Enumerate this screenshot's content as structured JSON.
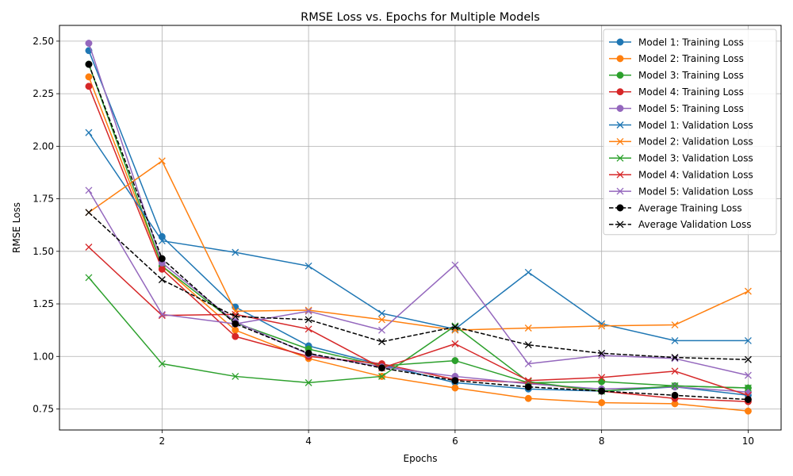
{
  "chart_data": {
    "type": "line",
    "title": "RMSE Loss vs. Epochs for Multiple Models",
    "xlabel": "Epochs",
    "ylabel": "RMSE Loss",
    "xlim": [
      0.6,
      10.45
    ],
    "ylim": [
      0.65,
      2.575
    ],
    "xticks": [
      2,
      4,
      6,
      8,
      10
    ],
    "xtick_labels": [
      "2",
      "4",
      "6",
      "8",
      "10"
    ],
    "yticks": [
      0.75,
      1.0,
      1.25,
      1.5,
      1.75,
      2.0,
      2.25,
      2.5
    ],
    "ytick_labels": [
      "0.75",
      "1.00",
      "1.25",
      "1.50",
      "1.75",
      "2.00",
      "2.25",
      "2.50"
    ],
    "grid": true,
    "legend_position": "top-right",
    "x": [
      1,
      2,
      3,
      4,
      5,
      6,
      7,
      8,
      9,
      10
    ],
    "series": [
      {
        "name": "Model 1: Training Loss",
        "color": "#1f77b4",
        "marker": "circle",
        "dashed": false,
        "values": [
          2.455,
          1.57,
          1.235,
          1.05,
          0.96,
          0.875,
          0.845,
          0.835,
          0.855,
          0.815
        ]
      },
      {
        "name": "Model 2: Training Loss",
        "color": "#ff7f0e",
        "marker": "circle",
        "dashed": false,
        "values": [
          2.33,
          1.43,
          1.125,
          0.99,
          0.905,
          0.85,
          0.8,
          0.78,
          0.775,
          0.74
        ]
      },
      {
        "name": "Model 3: Training Loss",
        "color": "#2ca02c",
        "marker": "circle",
        "dashed": false,
        "values": [
          2.39,
          1.43,
          1.16,
          1.035,
          0.955,
          0.98,
          0.875,
          0.88,
          0.86,
          0.85
        ]
      },
      {
        "name": "Model 4: Training Loss",
        "color": "#d62728",
        "marker": "circle",
        "dashed": false,
        "values": [
          2.285,
          1.415,
          1.095,
          1.0,
          0.965,
          0.89,
          0.875,
          0.835,
          0.8,
          0.785
        ]
      },
      {
        "name": "Model 5: Training Loss",
        "color": "#9467bd",
        "marker": "circle",
        "dashed": false,
        "values": [
          2.49,
          1.445,
          1.165,
          1.01,
          0.95,
          0.905,
          0.87,
          0.845,
          0.855,
          0.83
        ]
      },
      {
        "name": "Model 1: Validation Loss",
        "color": "#1f77b4",
        "marker": "x",
        "dashed": false,
        "values": [
          2.065,
          1.55,
          1.495,
          1.43,
          1.205,
          1.13,
          1.4,
          1.155,
          1.075,
          1.075
        ]
      },
      {
        "name": "Model 2: Validation Loss",
        "color": "#ff7f0e",
        "marker": "x",
        "dashed": false,
        "values": [
          1.685,
          1.93,
          1.215,
          1.22,
          1.175,
          1.125,
          1.135,
          1.145,
          1.15,
          1.31
        ]
      },
      {
        "name": "Model 3: Validation Loss",
        "color": "#2ca02c",
        "marker": "x",
        "dashed": false,
        "values": [
          1.375,
          0.965,
          0.905,
          0.875,
          0.905,
          1.145,
          0.88,
          0.835,
          0.86,
          0.85
        ]
      },
      {
        "name": "Model 4: Validation Loss",
        "color": "#d62728",
        "marker": "x",
        "dashed": false,
        "values": [
          1.52,
          1.195,
          1.2,
          1.13,
          0.945,
          1.06,
          0.885,
          0.9,
          0.93,
          0.815
        ]
      },
      {
        "name": "Model 5: Validation Loss",
        "color": "#9467bd",
        "marker": "x",
        "dashed": false,
        "values": [
          1.79,
          1.2,
          1.155,
          1.215,
          1.125,
          1.435,
          0.965,
          1.005,
          0.99,
          0.91
        ]
      },
      {
        "name": "Average Training Loss",
        "color": "#000000",
        "marker": "circle",
        "dashed": true,
        "values": [
          2.39,
          1.465,
          1.155,
          1.015,
          0.945,
          0.885,
          0.855,
          0.835,
          0.815,
          0.795
        ]
      },
      {
        "name": "Average Validation Loss",
        "color": "#000000",
        "marker": "x",
        "dashed": true,
        "values": [
          1.685,
          1.365,
          1.19,
          1.175,
          1.07,
          1.14,
          1.055,
          1.015,
          0.995,
          0.985
        ]
      }
    ]
  }
}
